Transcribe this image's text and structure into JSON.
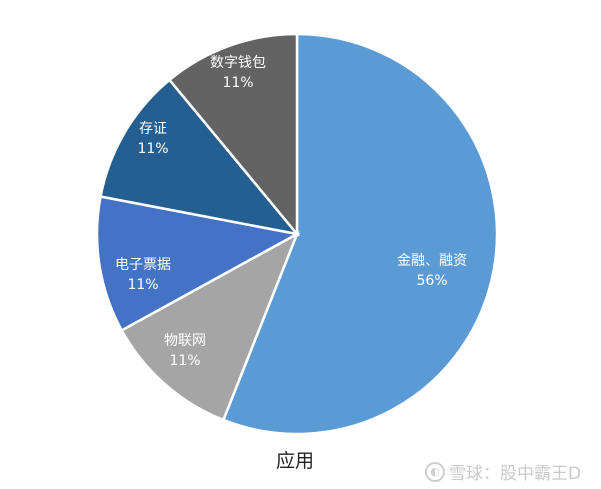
{
  "chart_data": {
    "type": "pie",
    "title": "",
    "caption": "应用",
    "start_angle": "12 o'clock, clockwise",
    "slices": [
      {
        "label": "金融、融资",
        "value": 56,
        "display": "56%",
        "color": "#5B9BD5"
      },
      {
        "label": "物联网",
        "value": 11,
        "display": "11%",
        "color": "#A5A5A5"
      },
      {
        "label": "电子票据",
        "value": 11,
        "display": "11%",
        "color": "#4472C4"
      },
      {
        "label": "存证",
        "value": 11,
        "display": "11%",
        "color": "#255E91"
      },
      {
        "label": "数字钱包",
        "value": 11,
        "display": "11%",
        "color": "#636363"
      }
    ],
    "legend": "none"
  },
  "caption": "应用",
  "watermark": {
    "icon": "snowball-logo-icon",
    "text": "雪球：股中霸王D"
  }
}
